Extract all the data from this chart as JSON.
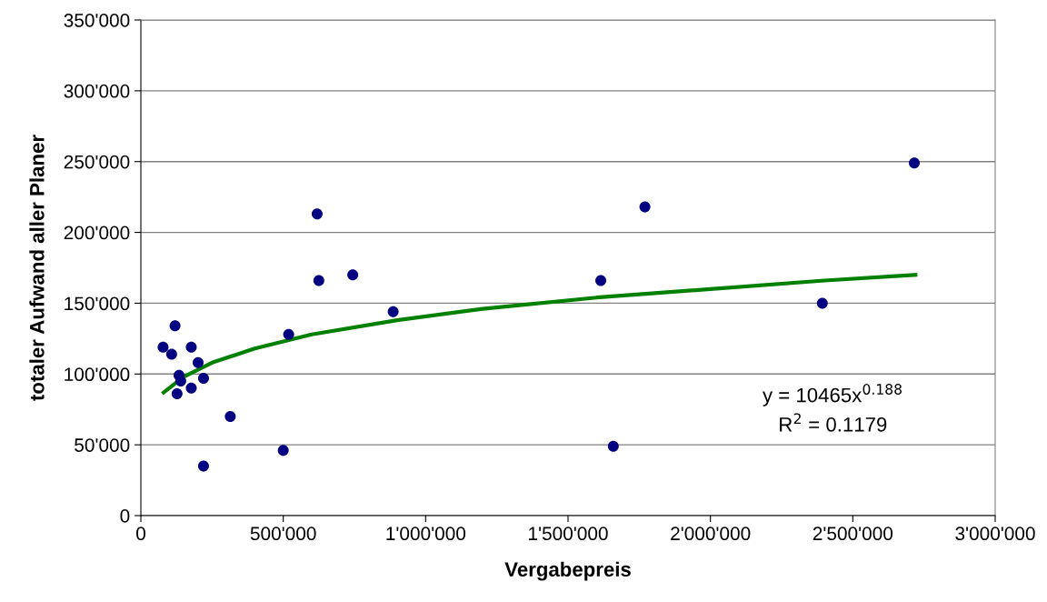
{
  "chart_data": {
    "type": "scatter",
    "xlabel": "Vergabepreis",
    "ylabel": "totaler Aufwand aller Planer",
    "xlim": [
      0,
      3000000
    ],
    "ylim": [
      0,
      350000
    ],
    "xticks": [
      0,
      {
        "value": 500000,
        "label": "500'000"
      },
      {
        "value": 1000000,
        "label": "1'000'000"
      },
      {
        "value": 1500000,
        "label": "1'500'000"
      },
      {
        "value": 2000000,
        "label": "2'000'000"
      },
      {
        "value": 2500000,
        "label": "2'500'000"
      },
      {
        "value": 3000000,
        "label": "3'000'000"
      }
    ],
    "yticks": [
      0,
      {
        "value": 50000,
        "label": "50'000"
      },
      {
        "value": 100000,
        "label": "100'000"
      },
      {
        "value": 150000,
        "label": "150'000"
      },
      {
        "value": 200000,
        "label": "200'000"
      },
      {
        "value": 250000,
        "label": "250'000"
      },
      {
        "value": 300000,
        "label": "300'000"
      },
      {
        "value": 350000,
        "label": "350'000"
      }
    ],
    "grid": "y",
    "legend": false,
    "series": [
      {
        "color": "#000080",
        "marker": "circle",
        "x": [
          78000,
          120000,
          108000,
          177000,
          201000,
          134000,
          140000,
          220000,
          177000,
          127000,
          314000,
          220000,
          500000,
          519000,
          886000,
          619000,
          625000,
          744000,
          1615000,
          1770000,
          1659000,
          2393000,
          2716000
        ],
        "values": [
          119000,
          134000,
          114000,
          119000,
          108000,
          99000,
          95000,
          97000,
          90000,
          86000,
          70000,
          35000,
          46000,
          128000,
          144000,
          213000,
          166000,
          170000,
          166000,
          218000,
          49000,
          150000,
          249000
        ]
      },
      {
        "type": "line",
        "color": "#008000",
        "marker": "none",
        "x": [
          80000,
          150000,
          250000,
          400000,
          600000,
          900000,
          1200000,
          1600000,
          2000000,
          2400000,
          2720000
        ],
        "values": [
          87000,
          98000,
          108000,
          118000,
          128000,
          138000,
          146000,
          154000,
          160000,
          166000,
          170000
        ]
      }
    ],
    "annotations": [
      "y = 10465x$^{0.188}$",
      "R$^{2}$ = 0.1179"
    ]
  }
}
